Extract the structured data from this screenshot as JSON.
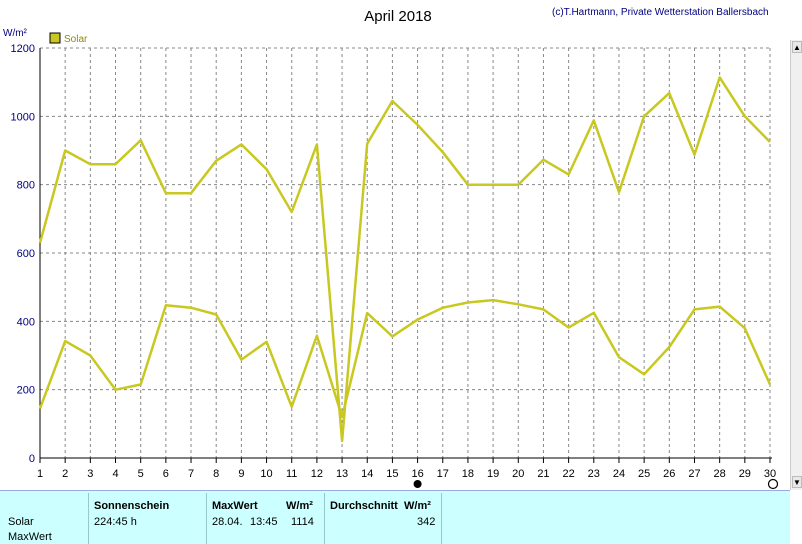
{
  "chart_data": {
    "type": "line",
    "title": "April 2018",
    "copyright": "(c)T.Hartmann, Private Wetterstation Ballersbach",
    "ylabel": "W/m²",
    "legend": {
      "label": "Solar",
      "color": "#c8c820",
      "placement": "top-left"
    },
    "ylim": [
      0,
      1200
    ],
    "yticks": [
      "0",
      "200",
      "400",
      "600",
      "800",
      "1000",
      "1200"
    ],
    "x": [
      "1",
      "2",
      "3",
      "4",
      "5",
      "6",
      "7",
      "8",
      "9",
      "10",
      "11",
      "12",
      "13",
      "14",
      "15",
      "16",
      "17",
      "18",
      "19",
      "20",
      "21",
      "22",
      "23",
      "24",
      "25",
      "26",
      "27",
      "28",
      "29",
      "30"
    ],
    "grid": true,
    "series": [
      {
        "key": "max",
        "color": "#c8c820",
        "values": [
          630,
          900,
          860,
          860,
          930,
          775,
          775,
          870,
          918,
          845,
          720,
          918,
          50,
          920,
          1045,
          975,
          895,
          800,
          800,
          800,
          873,
          830,
          988,
          778,
          1000,
          1068,
          888,
          1114,
          1000,
          925
        ]
      },
      {
        "key": "avg",
        "color": "#c8c820",
        "values": [
          145,
          342,
          300,
          200,
          215,
          447,
          440,
          420,
          288,
          340,
          150,
          358,
          120,
          424,
          356,
          405,
          440,
          455,
          462,
          450,
          435,
          382,
          425,
          295,
          245,
          325,
          435,
          443,
          380,
          215
        ]
      }
    ]
  },
  "stats": {
    "row_solar": "Solar",
    "row_max": "MaxWert",
    "col_sunshine": "Sonnenschein",
    "sunshine_value": "224:45 h",
    "col_max": "MaxWert",
    "col_max_unit": "W/m²",
    "max_date": "28.04.",
    "max_time": "13:45",
    "max_value": "1114",
    "col_avg": "Durchschnitt",
    "col_avg_unit": "W/m²",
    "avg_value": "342"
  },
  "scroll": {
    "up": "▲",
    "down": "▼"
  }
}
